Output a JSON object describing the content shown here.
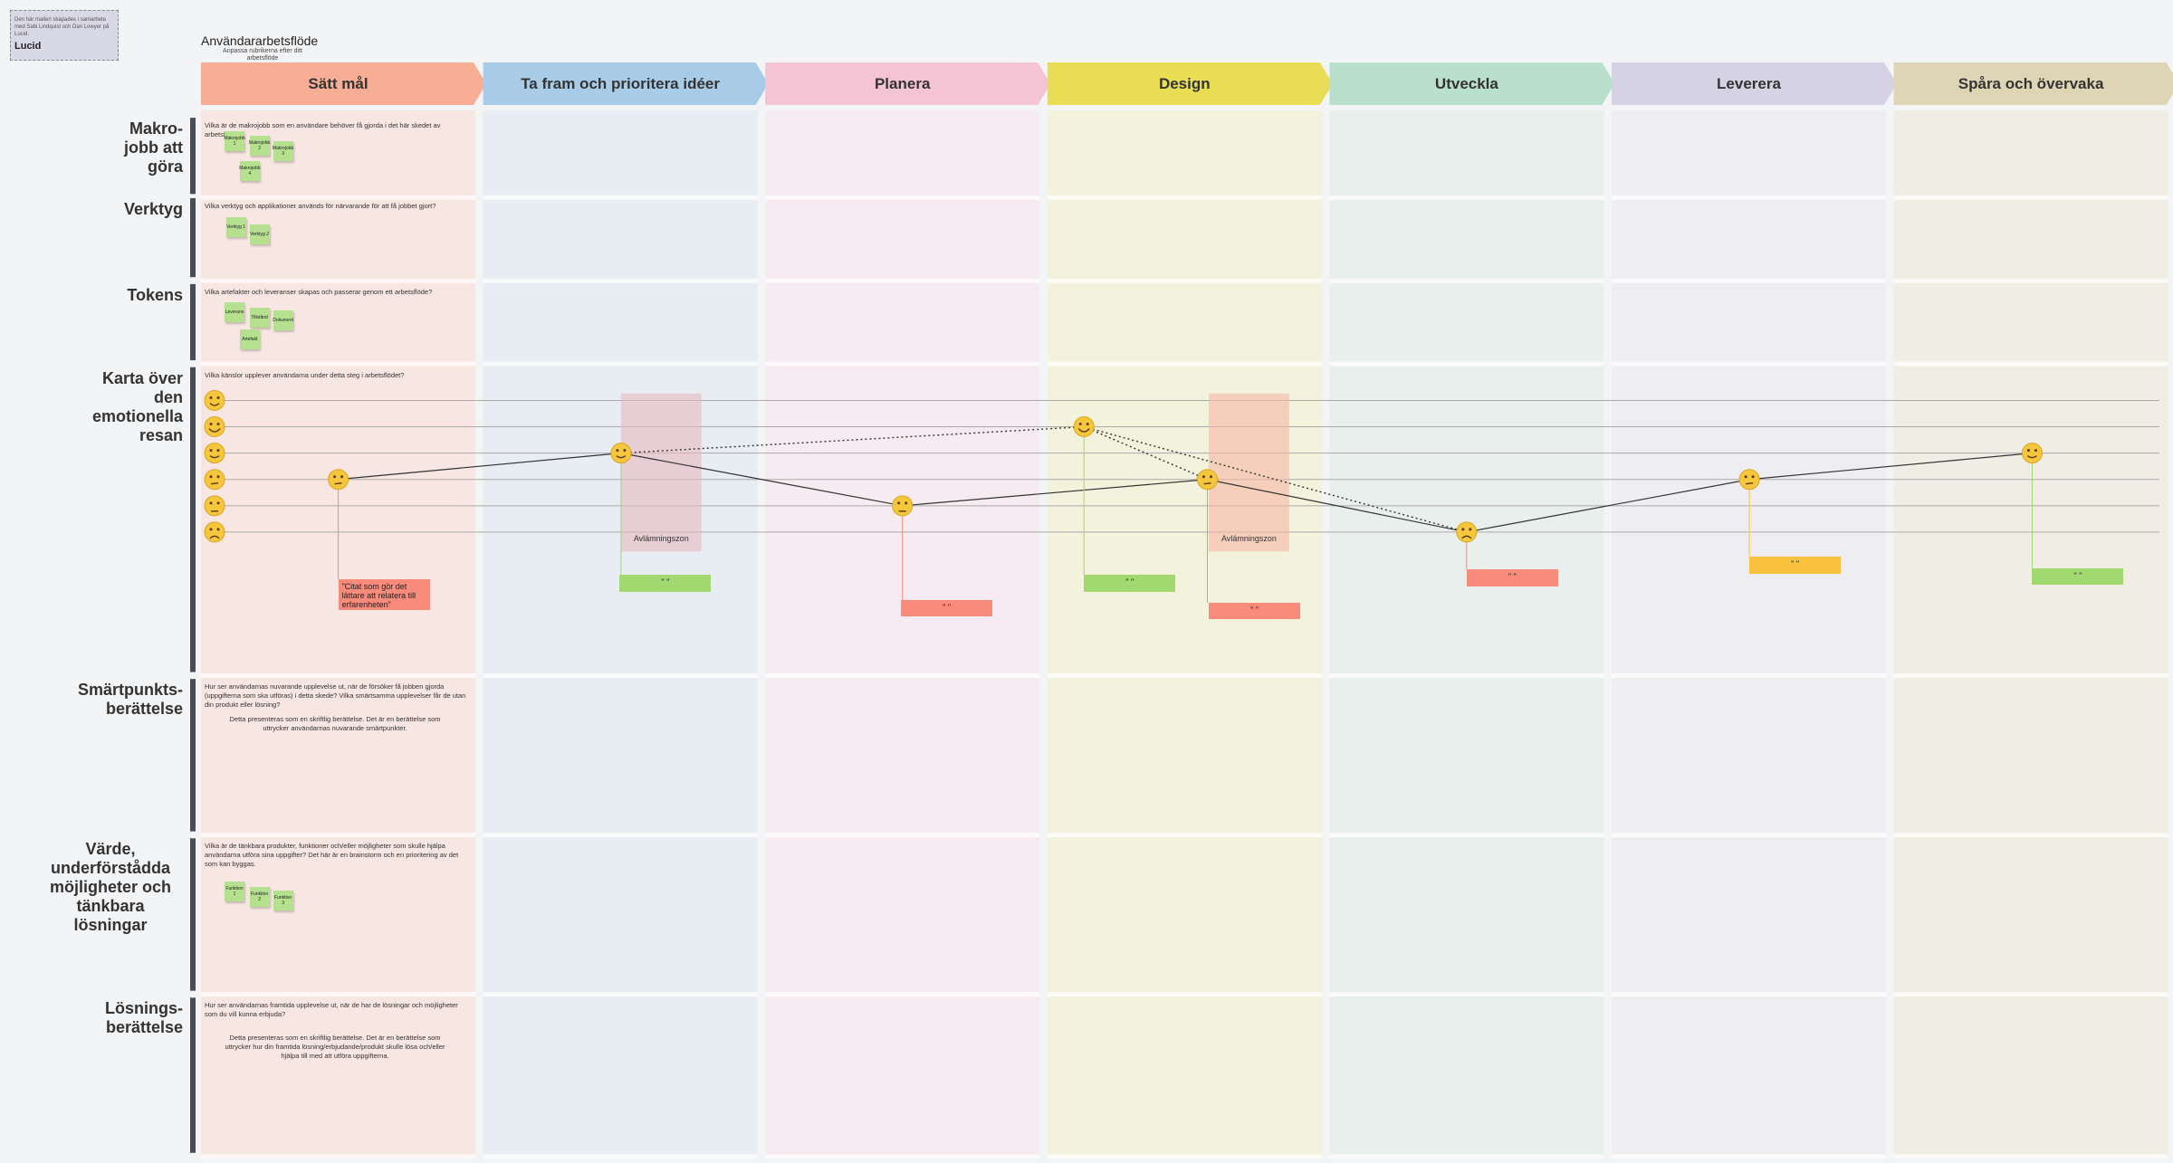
{
  "note": {
    "text": "Den här mallen skapades i samarbete med Sabi Lindquist och Dan Lowyer på Lucid.",
    "logo": "Lucid"
  },
  "header": {
    "title": "Användararbetsflöde",
    "subtitle": "Anpassa rubrikerna efter ditt arbetsflöde"
  },
  "stages": [
    "Sätt mål",
    "Ta fram och prioritera idéer",
    "Planera",
    "Design",
    "Utveckla",
    "Leverera",
    "Spåra och övervaka"
  ],
  "rows": [
    {
      "label": "Makro-jobb att göra",
      "prompt": "Vilka är de makrojobb som en användare behöver få gjorda i det här skedet av arbetsflödet?",
      "stickies": [
        "Makrojobb 1",
        "Makrojobb 2",
        "Makrojobb 3",
        "Makrojobb 4"
      ]
    },
    {
      "label": "Verktyg",
      "prompt": "Vilka verktyg och applikationer används för närvarande för att få jobbet gjort?",
      "stickies": [
        "Verktyg 1",
        "Verktyg 2"
      ]
    },
    {
      "label": "Tokens",
      "prompt": "Vilka artefakter och leveranser skapas och passerar genom ett arbetsflöde?",
      "stickies": [
        "Leverans",
        "Tillstånd",
        "Dokument",
        "Artefakt"
      ]
    },
    {
      "label": "Karta över den emotionella resan",
      "prompt": "Vilka känslor upplever användarna under detta steg i arbetsflödet?"
    },
    {
      "label": "Smärtpunkts-berättelse",
      "prompt": "Hur ser användarnas nuvarande upplevelse ut, när de försöker få jobben gjorda (uppgifterna som ska utföras) i detta skede? Vilka smärtsamma upplevelser får de utan din produkt eller lösning?",
      "description": "Detta presenteras som en skriftlig berättelse. Det är en berättelse som uttrycker användarnas nuvarande smärtpunkter."
    },
    {
      "label": "Värde, underförstådda möjligheter och tänkbara lösningar",
      "prompt": "Vilka är de tänkbara produkter, funktioner och/eller möjligheter som skulle hjälpa användarna utföra sina uppgifter? Det här är en brainstorm och en prioritering av det som kan byggas.",
      "stickies": [
        "Funktion 1",
        "Funktion 2",
        "Funktion 3"
      ]
    },
    {
      "label": "Lösnings-berättelse",
      "prompt": "Hur ser användarnas framtida upplevelse ut, när de har de lösningar och möjligheter som du vill kunna erbjuda?",
      "description": "Detta presenteras som en skriftlig berättelse. Det är en berättelse som uttrycker hur din framtida lösning/erbjudande/produkt skulle lösa och/eller hjälpa till med att utföra uppgifterna."
    }
  ],
  "emotion_map": {
    "zones": [
      "Avlämningszon",
      "Avlämningszon"
    ],
    "cards": [
      "\"Citat som gör det lättare att relatera till erfarenheten\"",
      "\" \"",
      "\" \"",
      "\" \"",
      "\" \"",
      "\" \"",
      "\" \"",
      "\" \""
    ]
  }
}
